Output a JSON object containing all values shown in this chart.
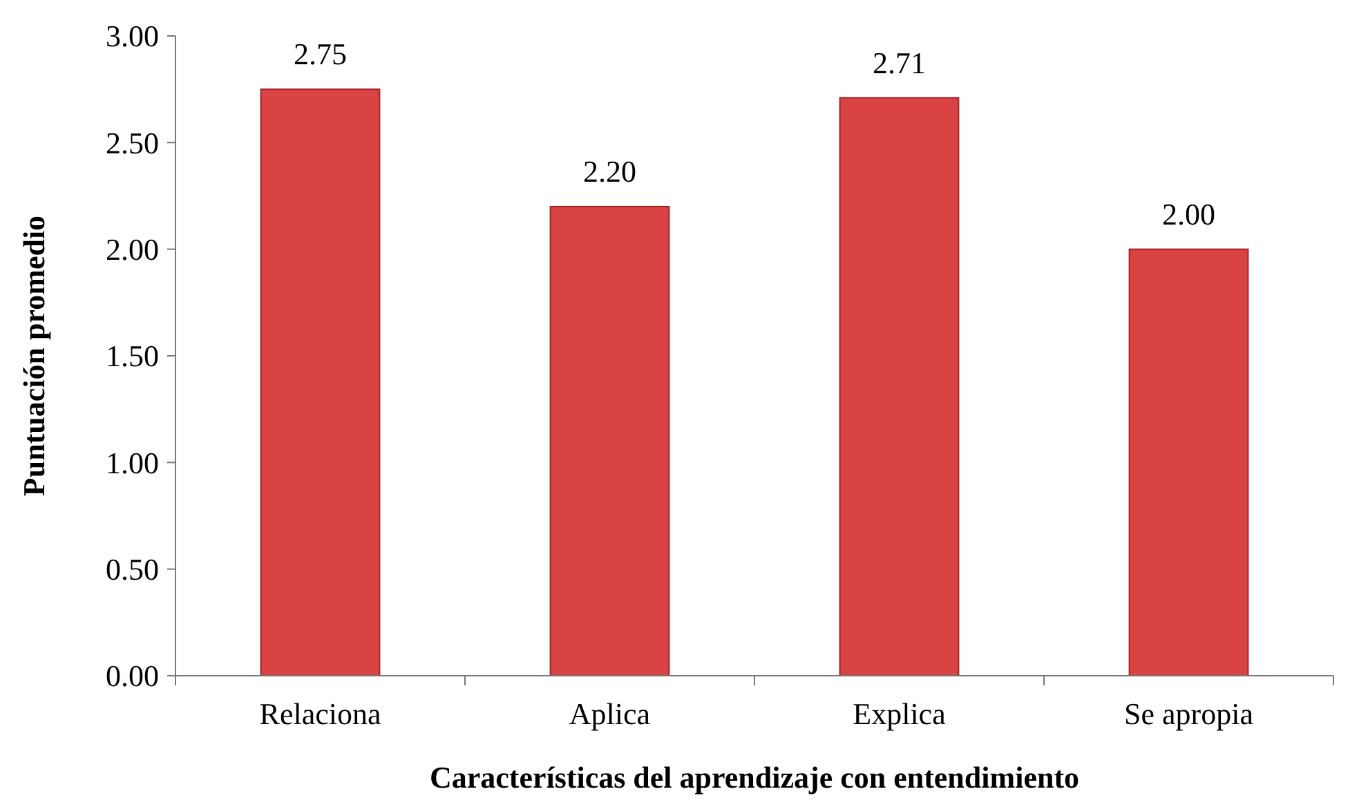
{
  "chart_data": {
    "type": "bar",
    "xlabel": "Características del aprendizaje con entendimiento",
    "ylabel": "Puntuación promedio",
    "categories": [
      "Relaciona",
      "Aplica",
      "Explica",
      "Se apropia"
    ],
    "values": [
      2.75,
      2.2,
      2.71,
      2.0
    ],
    "value_labels": [
      "2.75",
      "2.20",
      "2.71",
      "2.00"
    ],
    "color": "#d94343",
    "ylim": [
      0,
      3
    ],
    "yticks": [
      {
        "value": 0,
        "label": "0.00"
      },
      {
        "value": 0.5,
        "label": "0.50"
      },
      {
        "value": 1,
        "label": "1.00"
      },
      {
        "value": 1.5,
        "label": "1.50"
      },
      {
        "value": 2,
        "label": "2.00"
      },
      {
        "value": 2.5,
        "label": "2.50"
      },
      {
        "value": 3,
        "label": "3.00"
      }
    ],
    "grid": false
  }
}
